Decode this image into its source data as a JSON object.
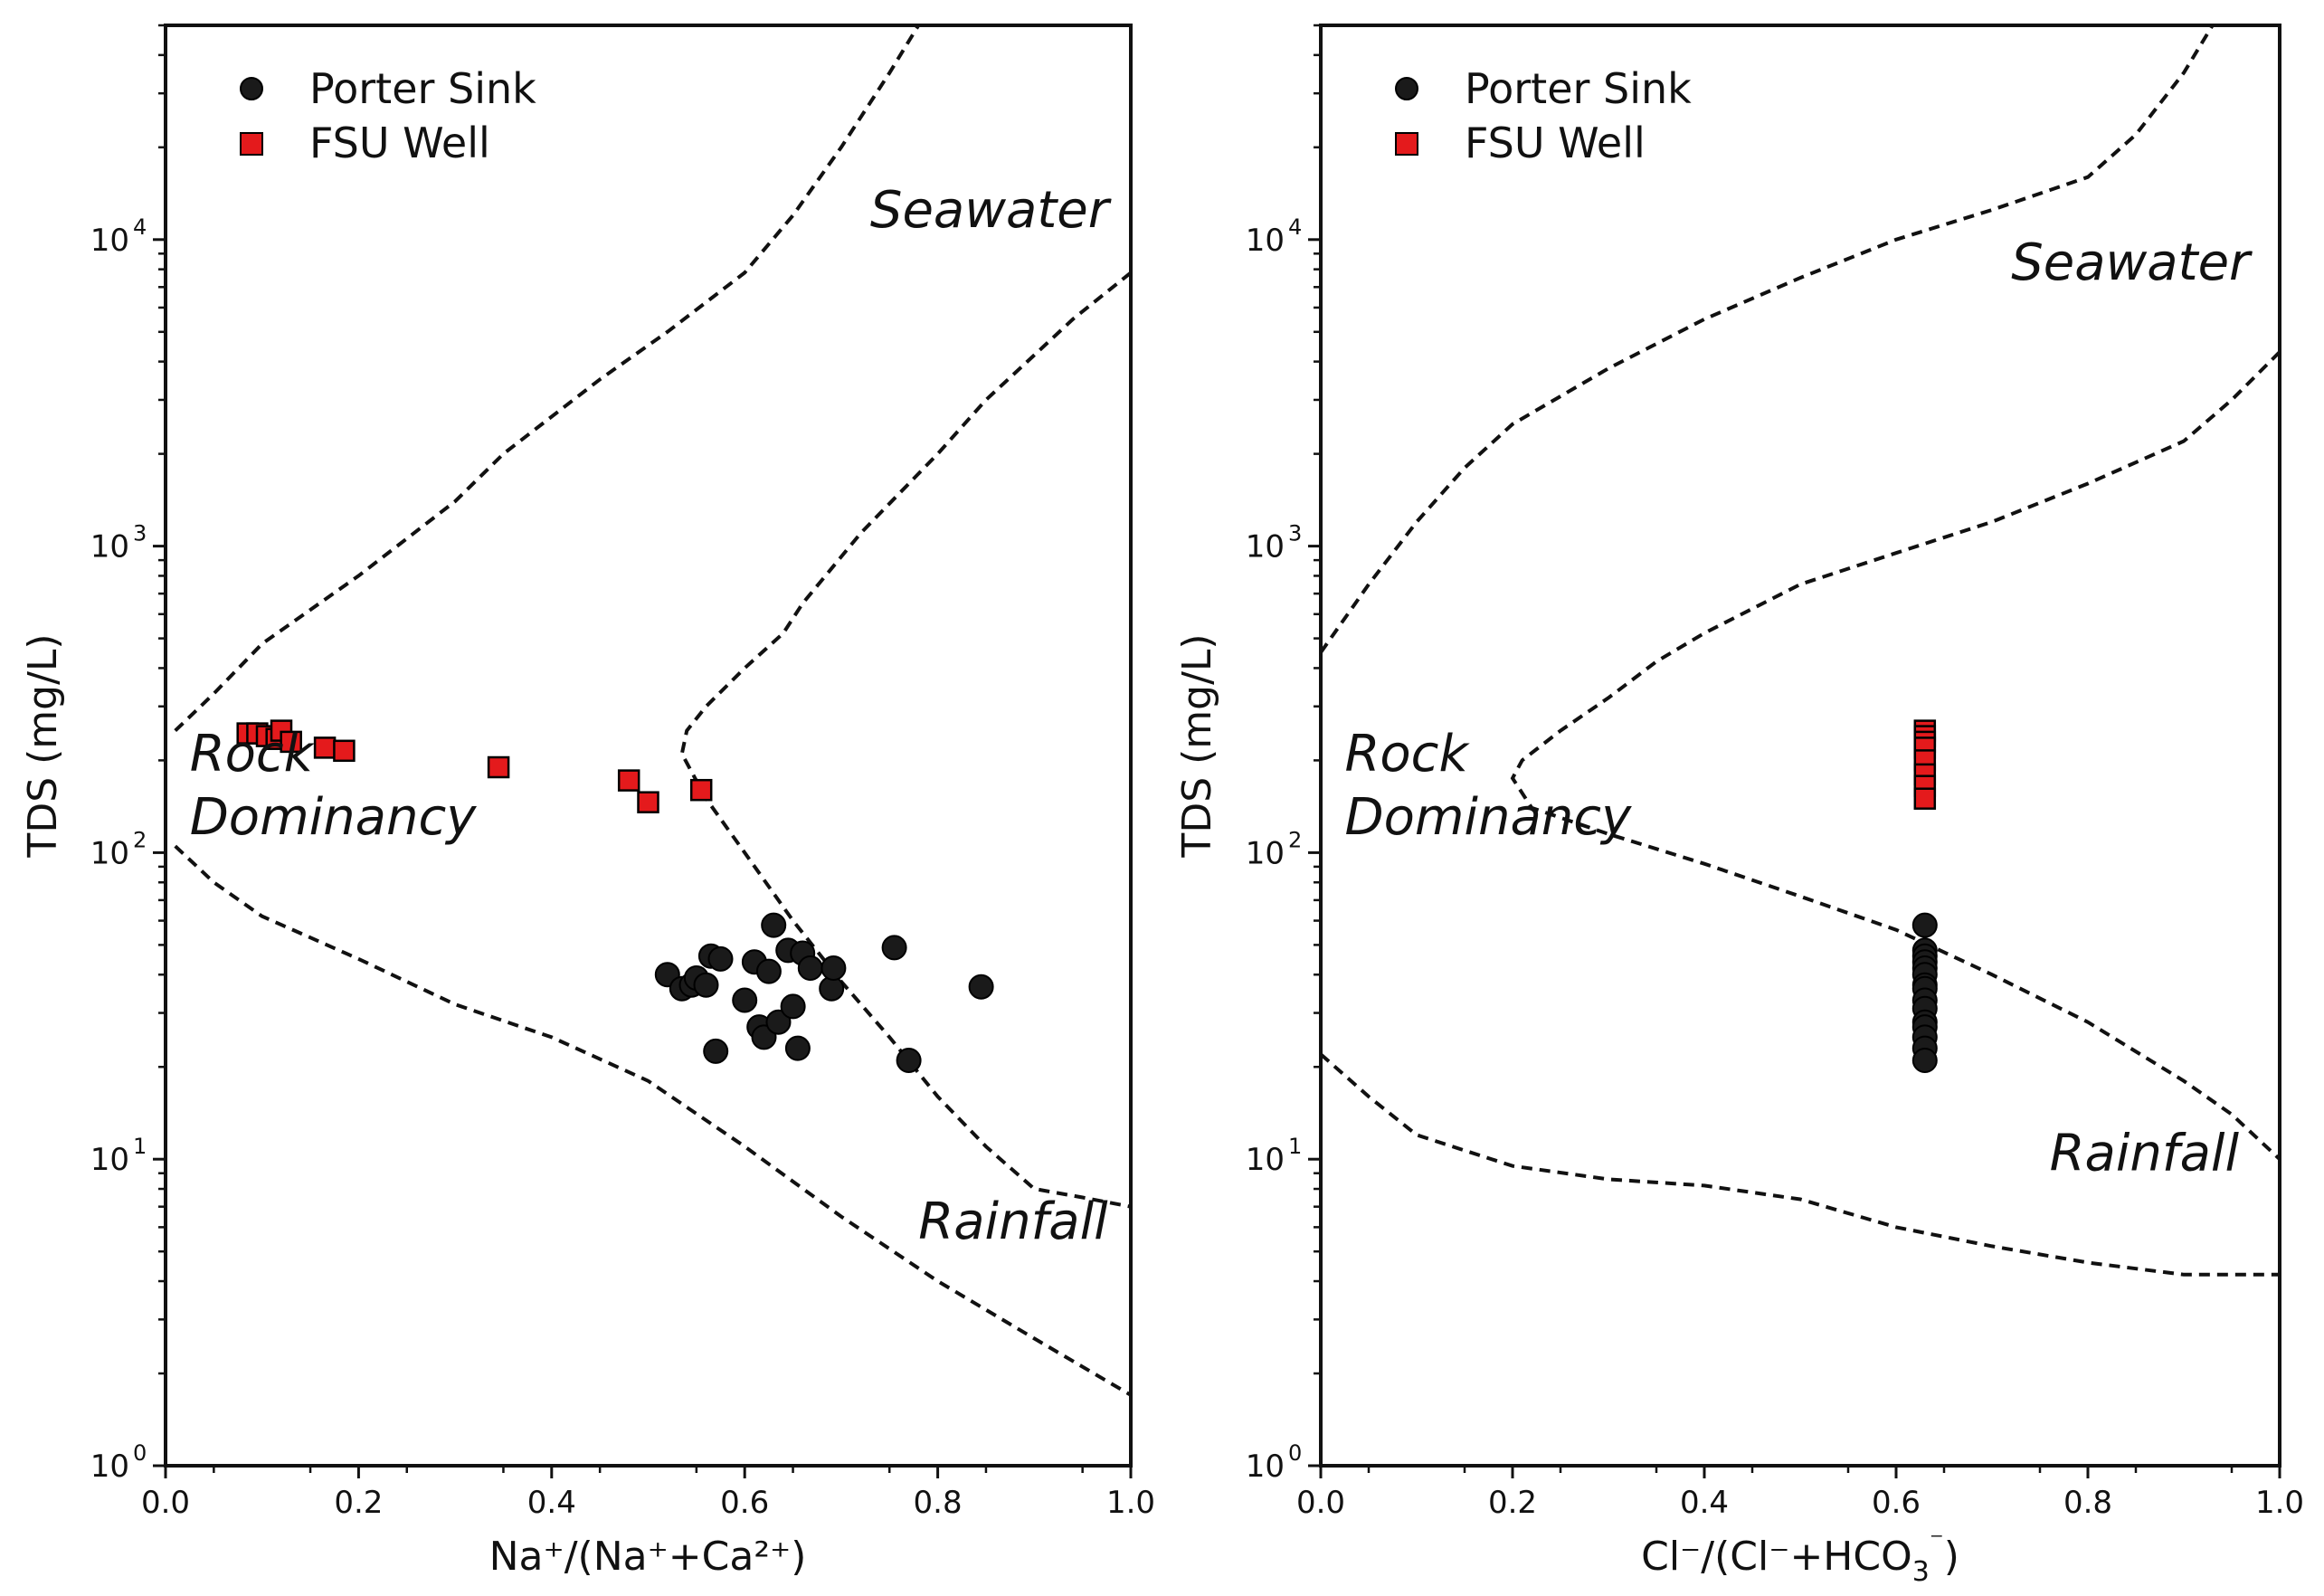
{
  "chart_data": [
    {
      "type": "scatter",
      "xlabel": "Na⁺/(Na⁺+Ca²⁺)",
      "ylabel": "TDS (mg/L)",
      "xlim": [
        0.0,
        1.0
      ],
      "ylim": [
        1,
        50000
      ],
      "yscale": "log",
      "x_ticks": [
        "0.0",
        "0.2",
        "0.4",
        "0.6",
        "0.8",
        "1.0"
      ],
      "y_ticks": [
        {
          "value": 1,
          "mant": "10",
          "exp": "0"
        },
        {
          "value": 10,
          "mant": "10",
          "exp": "1"
        },
        {
          "value": 100,
          "mant": "10",
          "exp": "2"
        },
        {
          "value": 1000,
          "mant": "10",
          "exp": "3"
        },
        {
          "value": 10000,
          "mant": "10",
          "exp": "4"
        }
      ],
      "grid": false,
      "legend_position": "top-left",
      "series": [
        {
          "name": "Porter Sink",
          "marker": "circle",
          "color": "#1a1a1a",
          "points": [
            [
              0.52,
              40
            ],
            [
              0.535,
              36
            ],
            [
              0.545,
              37
            ],
            [
              0.55,
              39
            ],
            [
              0.56,
              37
            ],
            [
              0.565,
              46
            ],
            [
              0.57,
              22.5
            ],
            [
              0.575,
              45
            ],
            [
              0.6,
              33
            ],
            [
              0.61,
              44
            ],
            [
              0.615,
              27
            ],
            [
              0.62,
              25
            ],
            [
              0.625,
              41
            ],
            [
              0.63,
              58
            ],
            [
              0.635,
              28
            ],
            [
              0.645,
              48
            ],
            [
              0.65,
              31.5
            ],
            [
              0.655,
              23
            ],
            [
              0.66,
              47
            ],
            [
              0.668,
              42
            ],
            [
              0.69,
              36
            ],
            [
              0.692,
              42
            ],
            [
              0.755,
              49
            ],
            [
              0.77,
              21
            ],
            [
              0.845,
              36.5
            ]
          ]
        },
        {
          "name": "FSU Well",
          "marker": "square",
          "color": "#e41a1c",
          "points": [
            [
              0.085,
              245
            ],
            [
              0.095,
              245
            ],
            [
              0.105,
              240
            ],
            [
              0.115,
              235
            ],
            [
              0.12,
              250
            ],
            [
              0.13,
              230
            ],
            [
              0.165,
              220
            ],
            [
              0.185,
              215
            ],
            [
              0.345,
              190
            ],
            [
              0.48,
              172
            ],
            [
              0.5,
              146
            ],
            [
              0.555,
              160
            ]
          ]
        }
      ],
      "envelope": {
        "upper": [
          [
            0.01,
            250
          ],
          [
            0.05,
            330
          ],
          [
            0.1,
            480
          ],
          [
            0.2,
            800
          ],
          [
            0.3,
            1400
          ],
          [
            0.35,
            2000
          ],
          [
            0.45,
            3500
          ],
          [
            0.52,
            5000
          ],
          [
            0.6,
            7800
          ],
          [
            0.65,
            12000
          ],
          [
            0.7,
            20000
          ],
          [
            0.75,
            35000
          ],
          [
            0.78,
            50000
          ]
        ],
        "outer": [
          [
            1.0,
            7800
          ],
          [
            0.94,
            5500
          ],
          [
            0.9,
            4200
          ],
          [
            0.85,
            3000
          ],
          [
            0.8,
            2000
          ],
          [
            0.72,
            1100
          ],
          [
            0.66,
            650
          ],
          [
            0.64,
            520
          ],
          [
            0.6,
            400
          ],
          [
            0.56,
            300
          ],
          [
            0.54,
            250
          ],
          [
            0.535,
            210
          ],
          [
            0.56,
            150
          ],
          [
            0.6,
            100
          ],
          [
            0.65,
            60
          ],
          [
            0.7,
            38
          ],
          [
            0.75,
            25
          ],
          [
            0.8,
            16
          ],
          [
            0.85,
            11
          ],
          [
            0.9,
            8
          ],
          [
            0.95,
            7.5
          ],
          [
            1.0,
            7
          ]
        ],
        "lower": [
          [
            0.01,
            105
          ],
          [
            0.05,
            80
          ],
          [
            0.1,
            62
          ],
          [
            0.2,
            45
          ],
          [
            0.3,
            32
          ],
          [
            0.4,
            25
          ],
          [
            0.5,
            18
          ],
          [
            0.6,
            11
          ],
          [
            0.7,
            6.5
          ],
          [
            0.8,
            4
          ],
          [
            0.9,
            2.6
          ],
          [
            1.0,
            1.7
          ]
        ]
      },
      "annotations": [
        {
          "text": "Seawater",
          "x": 0.73,
          "y": 11000
        },
        {
          "text": "Rock",
          "x": 0.025,
          "y": 185
        },
        {
          "text": "Dominancy",
          "x": 0.025,
          "y": 115
        },
        {
          "text": "Rainfall",
          "x": 0.78,
          "y": 5.5
        }
      ]
    },
    {
      "type": "scatter",
      "xlabel_main": "Cl⁻/(Cl⁻+HCO",
      "xlabel_sub": "3",
      "xlabel_sup": "⁻",
      "xlabel_end": ")",
      "ylabel": "TDS (mg/L)",
      "xlim": [
        0.0,
        1.0
      ],
      "ylim": [
        1,
        50000
      ],
      "yscale": "log",
      "x_ticks": [
        "0.0",
        "0.2",
        "0.4",
        "0.6",
        "0.8",
        "1.0"
      ],
      "y_ticks": [
        {
          "value": 1,
          "mant": "10",
          "exp": "0"
        },
        {
          "value": 10,
          "mant": "10",
          "exp": "1"
        },
        {
          "value": 100,
          "mant": "10",
          "exp": "2"
        },
        {
          "value": 1000,
          "mant": "10",
          "exp": "3"
        },
        {
          "value": 10000,
          "mant": "10",
          "exp": "4"
        }
      ],
      "grid": false,
      "legend_position": "top-left",
      "series": [
        {
          "name": "Porter Sink",
          "marker": "circle",
          "color": "#1a1a1a",
          "points": [
            [
              0.63,
              58
            ],
            [
              0.63,
              48
            ],
            [
              0.63,
              46
            ],
            [
              0.63,
              44
            ],
            [
              0.63,
              42
            ],
            [
              0.63,
              40
            ],
            [
              0.63,
              37
            ],
            [
              0.63,
              36
            ],
            [
              0.63,
              33
            ],
            [
              0.63,
              31
            ],
            [
              0.63,
              28
            ],
            [
              0.63,
              27
            ],
            [
              0.63,
              25
            ],
            [
              0.63,
              23
            ],
            [
              0.63,
              21
            ]
          ]
        },
        {
          "name": "FSU Well",
          "marker": "square",
          "color": "#e41a1c",
          "points": [
            [
              0.63,
              250
            ],
            [
              0.63,
              240
            ],
            [
              0.63,
              230
            ],
            [
              0.63,
              220
            ],
            [
              0.63,
              200
            ],
            [
              0.63,
              180
            ],
            [
              0.63,
              165
            ],
            [
              0.63,
              150
            ]
          ]
        }
      ],
      "envelope": {
        "upper": [
          [
            0.0,
            450
          ],
          [
            0.05,
            750
          ],
          [
            0.1,
            1200
          ],
          [
            0.15,
            1800
          ],
          [
            0.2,
            2500
          ],
          [
            0.3,
            3800
          ],
          [
            0.4,
            5500
          ],
          [
            0.5,
            7500
          ],
          [
            0.6,
            10000
          ],
          [
            0.7,
            12500
          ],
          [
            0.8,
            16000
          ],
          [
            0.85,
            22000
          ],
          [
            0.9,
            35000
          ],
          [
            0.93,
            50000
          ]
        ],
        "outer": [
          [
            1.0,
            4300
          ],
          [
            0.95,
            3000
          ],
          [
            0.9,
            2200
          ],
          [
            0.8,
            1600
          ],
          [
            0.7,
            1200
          ],
          [
            0.6,
            950
          ],
          [
            0.5,
            750
          ],
          [
            0.4,
            520
          ],
          [
            0.35,
            420
          ],
          [
            0.3,
            320
          ],
          [
            0.25,
            250
          ],
          [
            0.21,
            200
          ],
          [
            0.2,
            175
          ],
          [
            0.22,
            140
          ],
          [
            0.3,
            115
          ],
          [
            0.4,
            92
          ],
          [
            0.5,
            72
          ],
          [
            0.6,
            56
          ],
          [
            0.7,
            40
          ],
          [
            0.8,
            28
          ],
          [
            0.9,
            18
          ],
          [
            0.95,
            14
          ],
          [
            1.0,
            10
          ]
        ],
        "lower": [
          [
            0.0,
            22
          ],
          [
            0.05,
            16
          ],
          [
            0.1,
            12
          ],
          [
            0.2,
            9.5
          ],
          [
            0.3,
            8.6
          ],
          [
            0.4,
            8.2
          ],
          [
            0.5,
            7.4
          ],
          [
            0.6,
            6
          ],
          [
            0.7,
            5.2
          ],
          [
            0.8,
            4.6
          ],
          [
            0.9,
            4.2
          ],
          [
            1.0,
            4.2
          ]
        ]
      },
      "annotations": [
        {
          "text": "Seawater",
          "x": 0.72,
          "y": 7400
        },
        {
          "text": "Rock",
          "x": 0.025,
          "y": 185
        },
        {
          "text": "Dominancy",
          "x": 0.025,
          "y": 115
        },
        {
          "text": "Rainfall",
          "x": 0.76,
          "y": 9.2
        }
      ]
    }
  ]
}
